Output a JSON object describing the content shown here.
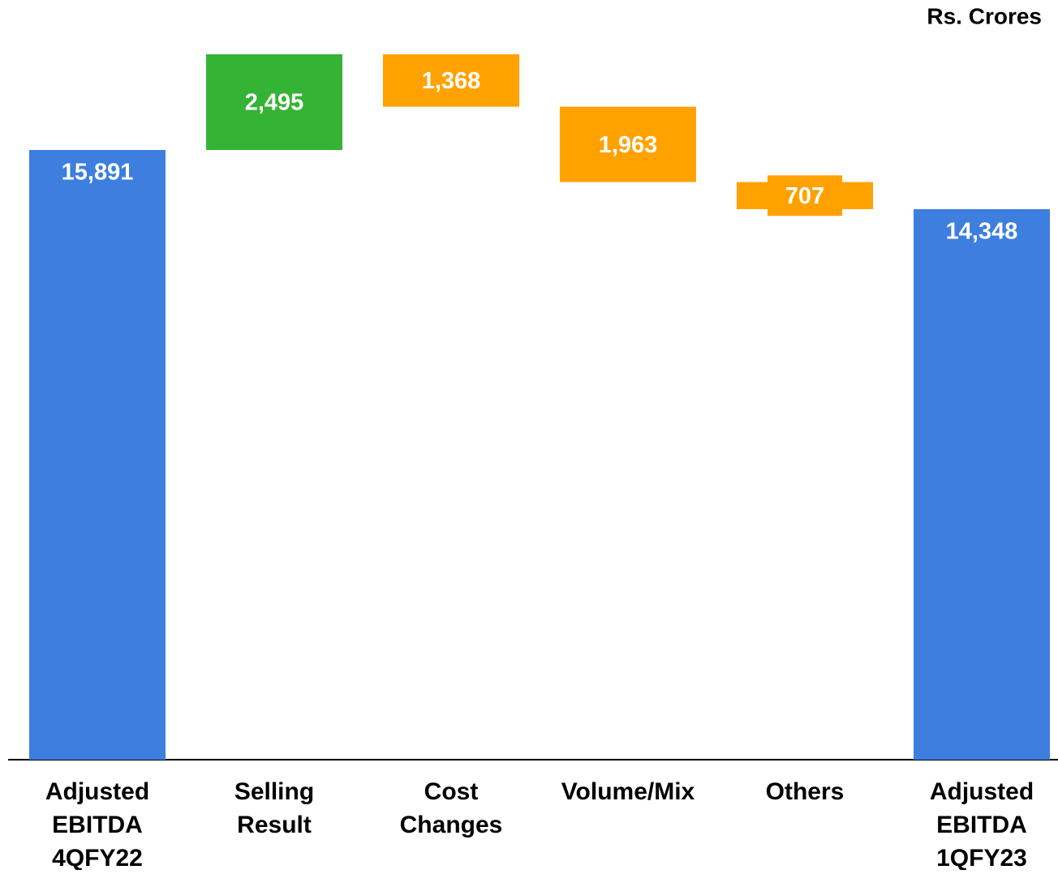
{
  "chart_data": {
    "type": "waterfall",
    "subtitle": "Rs. Crores",
    "categories": [
      [
        "Adjusted",
        "EBITDA",
        "4QFY22"
      ],
      [
        "Selling",
        "Result"
      ],
      [
        "Cost",
        "Changes"
      ],
      [
        "Volume/Mix"
      ],
      [
        "Others"
      ],
      [
        "Adjusted",
        "EBITDA",
        "1QFY23"
      ]
    ],
    "values": [
      15891,
      2495,
      -1368,
      -1963,
      -707,
      14348
    ],
    "value_labels": [
      "15,891",
      "2,495",
      "1,368",
      "1,963",
      "707",
      "14,348"
    ],
    "is_total": [
      true,
      false,
      false,
      false,
      false,
      true
    ],
    "colors": [
      "#3d7ede",
      "#35b335",
      "#ffa200",
      "#ffa200",
      "#ffa200",
      "#3d7ede"
    ],
    "ylim": [
      0,
      19800
    ]
  }
}
